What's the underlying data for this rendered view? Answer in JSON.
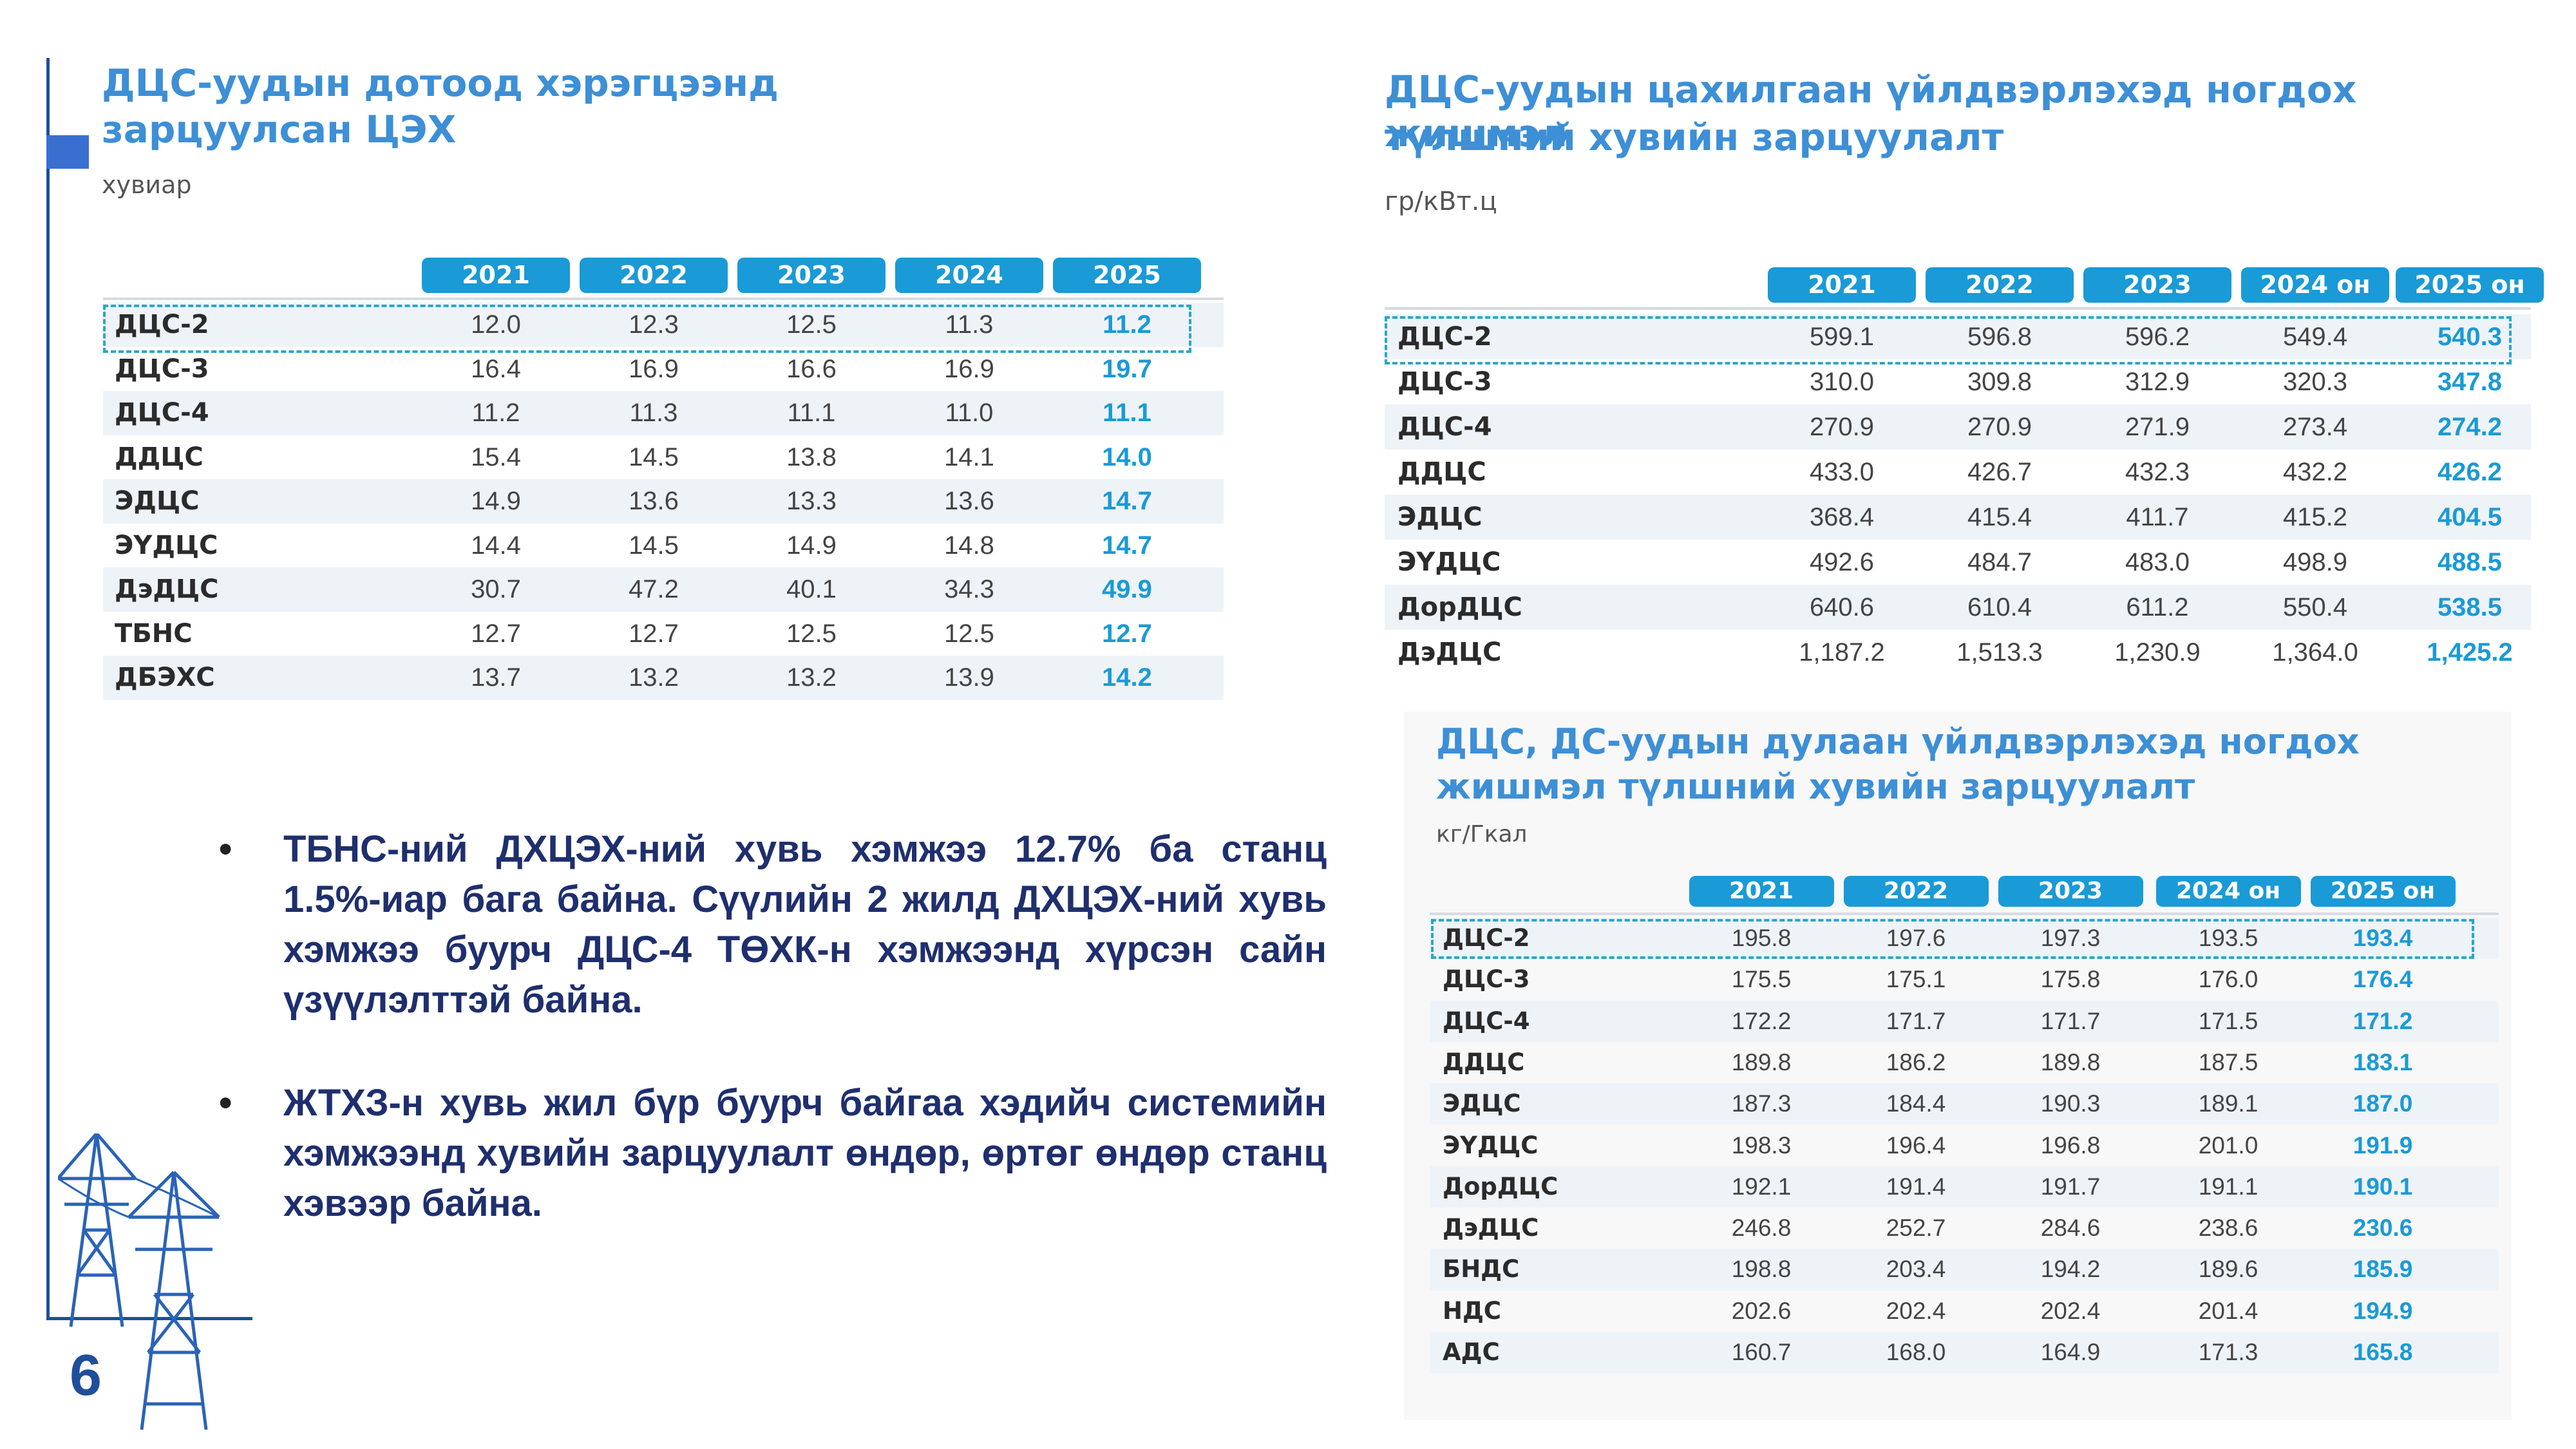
{
  "page": {
    "number": "6"
  },
  "panel1": {
    "title_line1": "ДЦС-уудын дотоод хэрэгцээнд",
    "title_line2": "зарцуулсан ЦЭХ",
    "unit": "хувиар",
    "headers": [
      "2021",
      "2022",
      "2023",
      "2024",
      "2025"
    ],
    "rows": [
      {
        "name": "ДЦС-2",
        "values": [
          "12.0",
          "12.3",
          "12.5",
          "11.3",
          "11.2"
        ]
      },
      {
        "name": "ДЦС-3",
        "values": [
          "16.4",
          "16.9",
          "16.6",
          "16.9",
          "19.7"
        ]
      },
      {
        "name": "ДЦС-4",
        "values": [
          "11.2",
          "11.3",
          "11.1",
          "11.0",
          "11.1"
        ]
      },
      {
        "name": "ДДЦС",
        "values": [
          "15.4",
          "14.5",
          "13.8",
          "14.1",
          "14.0"
        ]
      },
      {
        "name": "ЭДЦС",
        "values": [
          "14.9",
          "13.6",
          "13.3",
          "13.6",
          "14.7"
        ]
      },
      {
        "name": "ЭҮДЦС",
        "values": [
          "14.4",
          "14.5",
          "14.9",
          "14.8",
          "14.7"
        ]
      },
      {
        "name": "ДэДЦС",
        "values": [
          "30.7",
          "47.2",
          "40.1",
          "34.3",
          "49.9"
        ]
      },
      {
        "name": "ТБНС",
        "values": [
          "12.7",
          "12.7",
          "12.5",
          "12.5",
          "12.7"
        ]
      },
      {
        "name": "ДБЭХС",
        "values": [
          "13.7",
          "13.2",
          "13.2",
          "13.9",
          "14.2"
        ]
      }
    ]
  },
  "panel2": {
    "title_line1": "ДЦС-уудын цахилгаан үйлдвэрлэхэд ногдох жишмэл",
    "title_line2": "түлшний хувийн зарцуулалт",
    "unit": "гр/кВт.ц",
    "headers": [
      "2021",
      "2022",
      "2023",
      "2024 он",
      "2025 он"
    ],
    "rows": [
      {
        "name": "ДЦС-2",
        "values": [
          "599.1",
          "596.8",
          "596.2",
          "549.4",
          "540.3"
        ]
      },
      {
        "name": "ДЦС-3",
        "values": [
          "310.0",
          "309.8",
          "312.9",
          "320.3",
          "347.8"
        ]
      },
      {
        "name": "ДЦС-4",
        "values": [
          "270.9",
          "270.9",
          "271.9",
          "273.4",
          "274.2"
        ]
      },
      {
        "name": "ДДЦС",
        "values": [
          "433.0",
          "426.7",
          "432.3",
          "432.2",
          "426.2"
        ]
      },
      {
        "name": "ЭДЦС",
        "values": [
          "368.4",
          "415.4",
          "411.7",
          "415.2",
          "404.5"
        ]
      },
      {
        "name": "ЭҮДЦС",
        "values": [
          "492.6",
          "484.7",
          "483.0",
          "498.9",
          "488.5"
        ]
      },
      {
        "name": "ДорДЦС",
        "values": [
          "640.6",
          "610.4",
          "611.2",
          "550.4",
          "538.5"
        ]
      },
      {
        "name": "ДэДЦС",
        "values": [
          "1,187.2",
          "1,513.3",
          "1,230.9",
          "1,364.0",
          "1,425.2"
        ]
      }
    ]
  },
  "panel3": {
    "title_line1": "ДЦС, ДС-уудын дулаан үйлдвэрлэхэд ногдох",
    "title_line2": "жишмэл түлшний хувийн зарцуулалт",
    "unit": "кг/Гкал",
    "headers": [
      "2021",
      "2022",
      "2023",
      "2024 он",
      "2025 он"
    ],
    "rows": [
      {
        "name": "ДЦС-2",
        "values": [
          "195.8",
          "197.6",
          "197.3",
          "193.5",
          "193.4"
        ]
      },
      {
        "name": "ДЦС-3",
        "values": [
          "175.5",
          "175.1",
          "175.8",
          "176.0",
          "176.4"
        ]
      },
      {
        "name": "ДЦС-4",
        "values": [
          "172.2",
          "171.7",
          "171.7",
          "171.5",
          "171.2"
        ]
      },
      {
        "name": "ДДЦС",
        "values": [
          "189.8",
          "186.2",
          "189.8",
          "187.5",
          "183.1"
        ]
      },
      {
        "name": "ЭДЦС",
        "values": [
          "187.3",
          "184.4",
          "190.3",
          "189.1",
          "187.0"
        ]
      },
      {
        "name": "ЭҮДЦС",
        "values": [
          "198.3",
          "196.4",
          "196.8",
          "201.0",
          "191.9"
        ]
      },
      {
        "name": "ДорДЦС",
        "values": [
          "192.1",
          "191.4",
          "191.7",
          "191.1",
          "190.1"
        ]
      },
      {
        "name": "ДэДЦС",
        "values": [
          "246.8",
          "252.7",
          "284.6",
          "238.6",
          "230.6"
        ]
      },
      {
        "name": "БНДС",
        "values": [
          "198.8",
          "203.4",
          "194.2",
          "189.6",
          "185.9"
        ]
      },
      {
        "name": "НДС",
        "values": [
          "202.6",
          "202.4",
          "202.4",
          "201.4",
          "194.9"
        ]
      },
      {
        "name": "АДС",
        "values": [
          "160.7",
          "168.0",
          "164.9",
          "171.3",
          "165.8"
        ]
      }
    ]
  },
  "bullets": [
    "ТБНС-ний ДХЦЭХ-ний хувь хэмжээ 12.7% ба станц 1.5%-иар бага байна. Сүүлийн 2 жилд ДХЦЭХ-ний хувь хэмжээ буурч ДЦС-4 ТӨХК-н хэмжээнд хүрсэн сайн үзүүлэлттэй байна.",
    "ЖТХЗ-н хувь жил бүр буурч байгаа хэдийч системийн хэмжээнд хувийн зарцуулалт өндөр, өртөг өндөр станц хэвээр байна."
  ],
  "colors": {
    "accent": "#1a9ad6",
    "title": "#3d8fd6",
    "frame": "#1f4e9a",
    "bullet_text": "#1f2f6e"
  }
}
